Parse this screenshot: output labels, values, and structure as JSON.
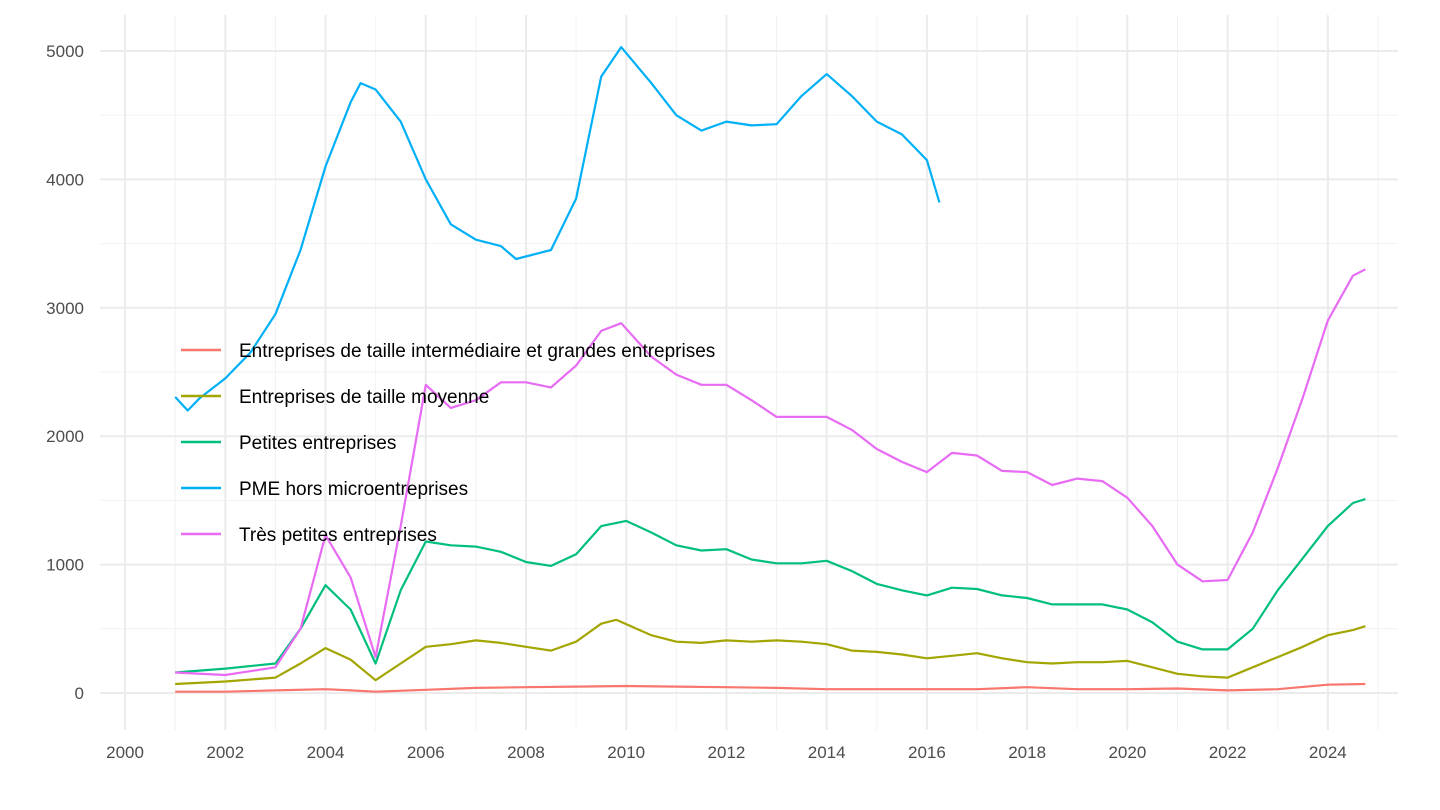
{
  "chart_data": {
    "type": "line",
    "title": "",
    "xlabel": "",
    "ylabel": "",
    "xlim": [
      1999.5,
      2025.4
    ],
    "ylim": [
      -288,
      5280
    ],
    "x_ticks": [
      "2000",
      "2002",
      "2004",
      "2006",
      "2008",
      "2010",
      "2012",
      "2014",
      "2016",
      "2018",
      "2020",
      "2022",
      "2024"
    ],
    "y_ticks": [
      "0",
      "1000",
      "2000",
      "3000",
      "4000",
      "5000"
    ],
    "grid": true,
    "legend_position": "inside-left",
    "series": [
      {
        "name": "Entreprises de taille intermédiaire et grandes entreprises",
        "color": "#F8766D",
        "points": [
          [
            2001,
            10
          ],
          [
            2002,
            10
          ],
          [
            2003,
            20
          ],
          [
            2004,
            30
          ],
          [
            2004.5,
            20
          ],
          [
            2005,
            10
          ],
          [
            2006,
            25
          ],
          [
            2007,
            40
          ],
          [
            2008,
            45
          ],
          [
            2009,
            50
          ],
          [
            2010,
            55
          ],
          [
            2011,
            50
          ],
          [
            2012,
            45
          ],
          [
            2013,
            40
          ],
          [
            2014,
            30
          ],
          [
            2015,
            30
          ],
          [
            2016,
            30
          ],
          [
            2017,
            30
          ],
          [
            2018,
            45
          ],
          [
            2019,
            30
          ],
          [
            2020,
            30
          ],
          [
            2021,
            35
          ],
          [
            2022,
            20
          ],
          [
            2023,
            30
          ],
          [
            2024,
            65
          ],
          [
            2024.75,
            70
          ]
        ]
      },
      {
        "name": "Entreprises de taille moyenne",
        "color": "#A3A500",
        "points": [
          [
            2001,
            70
          ],
          [
            2002,
            90
          ],
          [
            2003,
            120
          ],
          [
            2003.5,
            230
          ],
          [
            2004,
            350
          ],
          [
            2004.5,
            260
          ],
          [
            2005,
            100
          ],
          [
            2005.5,
            230
          ],
          [
            2006,
            360
          ],
          [
            2006.5,
            380
          ],
          [
            2007,
            410
          ],
          [
            2007.5,
            390
          ],
          [
            2008,
            360
          ],
          [
            2008.5,
            330
          ],
          [
            2009,
            400
          ],
          [
            2009.5,
            540
          ],
          [
            2009.8,
            570
          ],
          [
            2010.5,
            450
          ],
          [
            2011,
            400
          ],
          [
            2011.5,
            390
          ],
          [
            2012,
            410
          ],
          [
            2012.5,
            400
          ],
          [
            2013,
            410
          ],
          [
            2013.5,
            400
          ],
          [
            2014,
            380
          ],
          [
            2014.5,
            330
          ],
          [
            2015,
            320
          ],
          [
            2015.5,
            300
          ],
          [
            2016,
            270
          ],
          [
            2016.5,
            290
          ],
          [
            2017,
            310
          ],
          [
            2017.5,
            270
          ],
          [
            2018,
            240
          ],
          [
            2018.5,
            230
          ],
          [
            2019,
            240
          ],
          [
            2019.5,
            240
          ],
          [
            2020,
            250
          ],
          [
            2020.5,
            200
          ],
          [
            2021,
            150
          ],
          [
            2021.5,
            130
          ],
          [
            2022,
            120
          ],
          [
            2022.5,
            200
          ],
          [
            2023,
            280
          ],
          [
            2023.5,
            360
          ],
          [
            2024,
            450
          ],
          [
            2024.5,
            490
          ],
          [
            2024.75,
            520
          ]
        ]
      },
      {
        "name": "Petites entreprises",
        "color": "#00BF7D",
        "points": [
          [
            2001,
            160
          ],
          [
            2002,
            190
          ],
          [
            2003,
            230
          ],
          [
            2003.5,
            500
          ],
          [
            2004,
            840
          ],
          [
            2004.5,
            650
          ],
          [
            2005,
            230
          ],
          [
            2005.5,
            800
          ],
          [
            2006,
            1180
          ],
          [
            2006.5,
            1150
          ],
          [
            2007,
            1140
          ],
          [
            2007.5,
            1100
          ],
          [
            2008,
            1020
          ],
          [
            2008.5,
            990
          ],
          [
            2009,
            1080
          ],
          [
            2009.5,
            1300
          ],
          [
            2010,
            1340
          ],
          [
            2010.5,
            1250
          ],
          [
            2011,
            1150
          ],
          [
            2011.5,
            1110
          ],
          [
            2012,
            1120
          ],
          [
            2012.5,
            1040
          ],
          [
            2013,
            1010
          ],
          [
            2013.5,
            1010
          ],
          [
            2014,
            1030
          ],
          [
            2014.5,
            950
          ],
          [
            2015,
            850
          ],
          [
            2015.5,
            800
          ],
          [
            2016,
            760
          ],
          [
            2016.5,
            820
          ],
          [
            2017,
            810
          ],
          [
            2017.5,
            760
          ],
          [
            2018,
            740
          ],
          [
            2018.5,
            690
          ],
          [
            2019,
            690
          ],
          [
            2019.5,
            690
          ],
          [
            2020,
            650
          ],
          [
            2020.5,
            550
          ],
          [
            2021,
            400
          ],
          [
            2021.5,
            340
          ],
          [
            2022,
            340
          ],
          [
            2022.5,
            500
          ],
          [
            2023,
            800
          ],
          [
            2023.5,
            1050
          ],
          [
            2024,
            1300
          ],
          [
            2024.5,
            1480
          ],
          [
            2024.75,
            1510
          ]
        ]
      },
      {
        "name": "PME hors microentreprises",
        "color": "#00B0F6",
        "points": [
          [
            2001,
            2305
          ],
          [
            2001.25,
            2200
          ],
          [
            2001.5,
            2300
          ],
          [
            2002,
            2450
          ],
          [
            2002.5,
            2650
          ],
          [
            2003,
            2950
          ],
          [
            2003.5,
            3450
          ],
          [
            2004,
            4100
          ],
          [
            2004.5,
            4600
          ],
          [
            2004.7,
            4750
          ],
          [
            2005,
            4700
          ],
          [
            2005.5,
            4450
          ],
          [
            2006,
            4000
          ],
          [
            2006.5,
            3650
          ],
          [
            2007,
            3530
          ],
          [
            2007.5,
            3480
          ],
          [
            2007.8,
            3380
          ],
          [
            2008.5,
            3450
          ],
          [
            2009,
            3850
          ],
          [
            2009.5,
            4800
          ],
          [
            2009.9,
            5030
          ],
          [
            2010.5,
            4750
          ],
          [
            2011,
            4500
          ],
          [
            2011.5,
            4380
          ],
          [
            2012,
            4450
          ],
          [
            2012.5,
            4420
          ],
          [
            2013,
            4430
          ],
          [
            2013.5,
            4650
          ],
          [
            2014,
            4820
          ],
          [
            2014.5,
            4650
          ],
          [
            2015,
            4450
          ],
          [
            2015.5,
            4350
          ],
          [
            2016,
            4150
          ],
          [
            2016.25,
            3820
          ]
        ]
      },
      {
        "name": "Très petites entreprises",
        "color": "#E76BF3",
        "points": [
          [
            2001,
            160
          ],
          [
            2002,
            140
          ],
          [
            2003,
            200
          ],
          [
            2003.5,
            500
          ],
          [
            2004,
            1230
          ],
          [
            2004.5,
            900
          ],
          [
            2005,
            280
          ],
          [
            2005.5,
            1300
          ],
          [
            2006,
            2400
          ],
          [
            2006.5,
            2220
          ],
          [
            2007,
            2280
          ],
          [
            2007.5,
            2420
          ],
          [
            2008,
            2420
          ],
          [
            2008.5,
            2380
          ],
          [
            2009,
            2550
          ],
          [
            2009.5,
            2820
          ],
          [
            2009.9,
            2880
          ],
          [
            2010.5,
            2620
          ],
          [
            2011,
            2480
          ],
          [
            2011.5,
            2400
          ],
          [
            2012,
            2400
          ],
          [
            2012.5,
            2280
          ],
          [
            2013,
            2150
          ],
          [
            2013.5,
            2150
          ],
          [
            2014,
            2150
          ],
          [
            2014.5,
            2050
          ],
          [
            2015,
            1900
          ],
          [
            2015.5,
            1800
          ],
          [
            2016,
            1720
          ],
          [
            2016.5,
            1870
          ],
          [
            2017,
            1850
          ],
          [
            2017.5,
            1730
          ],
          [
            2018,
            1720
          ],
          [
            2018.5,
            1620
          ],
          [
            2019,
            1670
          ],
          [
            2019.5,
            1650
          ],
          [
            2020,
            1520
          ],
          [
            2020.5,
            1300
          ],
          [
            2021,
            1000
          ],
          [
            2021.5,
            870
          ],
          [
            2022,
            880
          ],
          [
            2022.5,
            1250
          ],
          [
            2023,
            1750
          ],
          [
            2023.5,
            2300
          ],
          [
            2024,
            2900
          ],
          [
            2024.5,
            3250
          ],
          [
            2024.75,
            3300
          ]
        ]
      }
    ]
  }
}
